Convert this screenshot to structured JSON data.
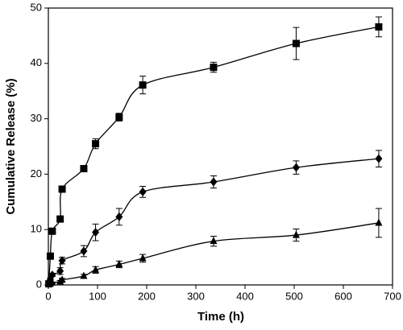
{
  "chart_data": {
    "type": "line",
    "x_label": "Time (h)",
    "y_label": "Cumulative Release (%)",
    "x": [
      1,
      4,
      8,
      24,
      28,
      72,
      96,
      144,
      192,
      336,
      504,
      672
    ],
    "series": [
      {
        "marker": "square",
        "color": "#000000",
        "values": [
          0.2,
          5.2,
          9.7,
          11.9,
          17.3,
          21.0,
          25.5,
          30.3,
          36.1,
          39.3,
          43.6,
          46.6
        ],
        "errors": [
          0.2,
          0.3,
          0.3,
          0.3,
          0.3,
          0.3,
          0.9,
          0.7,
          1.6,
          0.9,
          2.9,
          1.8
        ]
      },
      {
        "marker": "diamond",
        "color": "#000000",
        "values": [
          0.3,
          1.0,
          1.8,
          2.5,
          4.4,
          6.1,
          9.5,
          12.3,
          16.8,
          18.6,
          21.2,
          22.8
        ],
        "errors": [
          0.2,
          0.3,
          0.3,
          0.6,
          0.6,
          1.0,
          1.5,
          1.5,
          1.0,
          1.1,
          1.2,
          1.5
        ]
      },
      {
        "marker": "triangle",
        "color": "#000000",
        "values": [
          0.1,
          0.2,
          0.4,
          0.6,
          0.9,
          1.6,
          2.7,
          3.7,
          4.8,
          7.9,
          9.0,
          11.2
        ],
        "errors": [
          0.1,
          0.1,
          0.1,
          0.2,
          0.3,
          0.3,
          0.6,
          0.6,
          0.7,
          0.9,
          1.1,
          2.6
        ]
      }
    ],
    "xlim": [
      0,
      700
    ],
    "xticks": [
      0,
      100,
      200,
      300,
      400,
      500,
      600,
      700
    ],
    "ylim": [
      0,
      50
    ],
    "yticks": [
      0,
      10,
      20,
      30,
      40,
      50
    ],
    "grid": false
  }
}
